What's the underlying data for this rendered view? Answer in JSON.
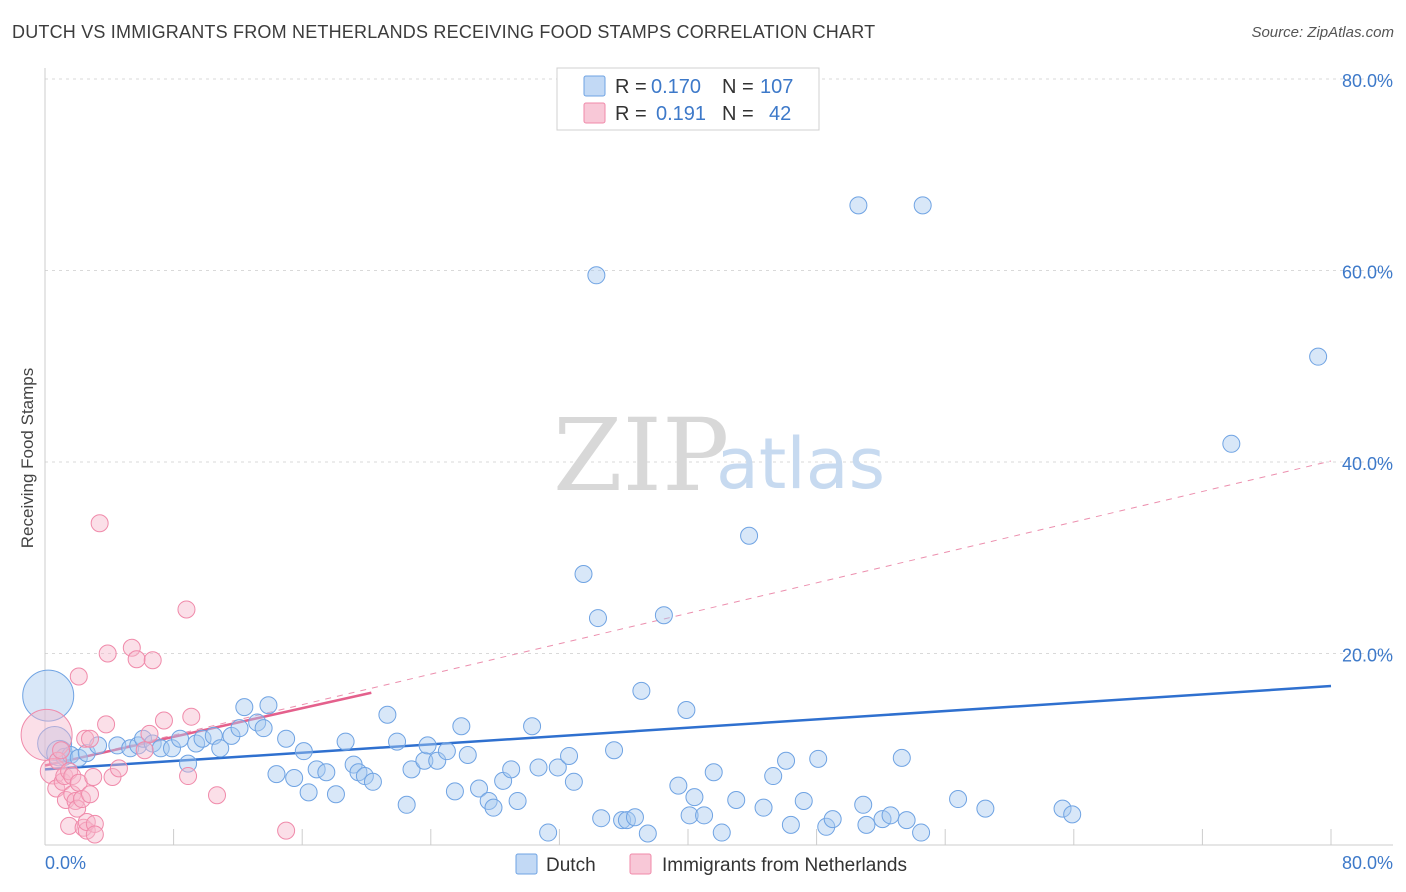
{
  "title": "DUTCH VS IMMIGRANTS FROM NETHERLANDS RECEIVING FOOD STAMPS CORRELATION CHART",
  "source": "Source: ZipAtlas.com",
  "watermark": {
    "zip": "ZIP",
    "atlas": "atlas"
  },
  "legend": {
    "rows": [
      {
        "r_label": "R =",
        "r_value": "0.170",
        "n_label": "N =",
        "n_value": "107"
      },
      {
        "r_label": "R =",
        "r_value": "0.191",
        "n_label": "N =",
        "n_value": "42"
      }
    ]
  },
  "bottom_legend": [
    "Dutch",
    "Immigrants from Netherlands"
  ],
  "colors": {
    "dutch": "#6fa3e3",
    "dutch_line": "#2f70cf",
    "neth": "#f08aaa",
    "neth_line": "#e4608c",
    "grid": "#d9d9d9",
    "tick": "#3d79c9"
  },
  "chart_data": {
    "type": "scatter",
    "title": "DUTCH VS IMMIGRANTS FROM NETHERLANDS RECEIVING FOOD STAMPS CORRELATION CHART",
    "xlabel": "",
    "ylabel": "Receiving Food Stamps",
    "xlim": [
      0,
      80
    ],
    "ylim": [
      0,
      80
    ],
    "x_tick_labels": [
      "0.0%",
      "80.0%"
    ],
    "y_tick_labels": [
      "20.0%",
      "40.0%",
      "60.0%",
      "80.0%"
    ],
    "y_ticks": [
      20,
      40,
      60,
      80
    ],
    "grid": true,
    "legend_position": "top-center",
    "series": [
      {
        "name": "Dutch",
        "color": "#6fa3e3",
        "trend": {
          "x": [
            0,
            80
          ],
          "y": [
            7.9,
            16.6
          ]
        },
        "points": [
          [
            0.2,
            15.6,
            3
          ],
          [
            0.6,
            10.6,
            2
          ],
          [
            0.9,
            9.6,
            1.5
          ],
          [
            1.2,
            9.2,
            1
          ],
          [
            1.6,
            9.4,
            1
          ],
          [
            2.1,
            9.1,
            1
          ],
          [
            2.6,
            9.6,
            1
          ],
          [
            3.3,
            10.4,
            1
          ],
          [
            4.5,
            10.4,
            1
          ],
          [
            5.3,
            10.1,
            1
          ],
          [
            5.8,
            10.4,
            1
          ],
          [
            6.1,
            11.1,
            1
          ],
          [
            6.7,
            10.6,
            1
          ],
          [
            7.2,
            10.1,
            1
          ],
          [
            7.9,
            10.1,
            1
          ],
          [
            8.4,
            11.1,
            1
          ],
          [
            8.9,
            8.5,
            1
          ],
          [
            9.4,
            10.6,
            1
          ],
          [
            9.8,
            11.1,
            1
          ],
          [
            10.5,
            11.4,
            1
          ],
          [
            10.9,
            10.1,
            1
          ],
          [
            11.6,
            11.4,
            1
          ],
          [
            12.1,
            12.2,
            1
          ],
          [
            12.4,
            14.4,
            1
          ],
          [
            13.2,
            12.8,
            1
          ],
          [
            13.6,
            12.2,
            1
          ],
          [
            13.9,
            14.6,
            1
          ],
          [
            14.4,
            7.4,
            1
          ],
          [
            15.0,
            11.1,
            1
          ],
          [
            15.5,
            7.0,
            1
          ],
          [
            16.1,
            9.8,
            1
          ],
          [
            16.4,
            5.5,
            1
          ],
          [
            16.9,
            7.9,
            1
          ],
          [
            17.5,
            7.6,
            1
          ],
          [
            18.1,
            5.3,
            1
          ],
          [
            18.7,
            10.8,
            1
          ],
          [
            19.2,
            8.4,
            1
          ],
          [
            19.5,
            7.6,
            1
          ],
          [
            19.9,
            7.2,
            1
          ],
          [
            20.4,
            6.6,
            1
          ],
          [
            21.3,
            13.6,
            1
          ],
          [
            21.9,
            10.8,
            1
          ],
          [
            22.5,
            4.2,
            1
          ],
          [
            22.8,
            7.9,
            1
          ],
          [
            23.6,
            8.8,
            1
          ],
          [
            23.8,
            10.4,
            1
          ],
          [
            24.4,
            8.8,
            1
          ],
          [
            25.0,
            9.8,
            1
          ],
          [
            25.5,
            5.6,
            1
          ],
          [
            25.9,
            12.4,
            1
          ],
          [
            26.3,
            9.4,
            1
          ],
          [
            27.0,
            5.9,
            1
          ],
          [
            27.6,
            4.6,
            1
          ],
          [
            27.9,
            3.9,
            1
          ],
          [
            28.5,
            6.7,
            1
          ],
          [
            29.0,
            7.9,
            1
          ],
          [
            29.4,
            4.6,
            1
          ],
          [
            30.3,
            12.4,
            1
          ],
          [
            30.7,
            8.1,
            1
          ],
          [
            31.3,
            1.3,
            1
          ],
          [
            31.9,
            8.1,
            1
          ],
          [
            32.6,
            9.3,
            1
          ],
          [
            32.9,
            6.6,
            1
          ],
          [
            33.5,
            28.3,
            1
          ],
          [
            34.3,
            59.5,
            1
          ],
          [
            34.4,
            23.7,
            1
          ],
          [
            34.6,
            2.8,
            1
          ],
          [
            35.4,
            9.9,
            1
          ],
          [
            35.9,
            2.6,
            1
          ],
          [
            36.2,
            2.6,
            1
          ],
          [
            36.7,
            2.9,
            1
          ],
          [
            37.1,
            16.1,
            1
          ],
          [
            37.5,
            1.2,
            1
          ],
          [
            38.5,
            24.0,
            1
          ],
          [
            39.4,
            6.2,
            1
          ],
          [
            39.9,
            14.1,
            1
          ],
          [
            40.1,
            3.1,
            1
          ],
          [
            40.4,
            5.0,
            1
          ],
          [
            41.0,
            3.1,
            1
          ],
          [
            41.6,
            7.6,
            1
          ],
          [
            42.1,
            1.3,
            1
          ],
          [
            43.0,
            4.7,
            1
          ],
          [
            43.8,
            32.3,
            1
          ],
          [
            44.7,
            3.9,
            1
          ],
          [
            45.3,
            7.2,
            1
          ],
          [
            46.1,
            8.8,
            1
          ],
          [
            46.4,
            2.1,
            1
          ],
          [
            47.2,
            4.6,
            1
          ],
          [
            48.1,
            9.0,
            1
          ],
          [
            48.6,
            1.9,
            1
          ],
          [
            49.0,
            2.7,
            1
          ],
          [
            50.6,
            66.8,
            1
          ],
          [
            50.9,
            4.2,
            1
          ],
          [
            51.1,
            2.1,
            1
          ],
          [
            52.1,
            2.7,
            1
          ],
          [
            52.6,
            3.1,
            1
          ],
          [
            53.3,
            9.1,
            1
          ],
          [
            53.6,
            2.6,
            1
          ],
          [
            54.5,
            1.3,
            1
          ],
          [
            54.6,
            66.8,
            1
          ],
          [
            56.8,
            4.8,
            1
          ],
          [
            58.5,
            3.8,
            1
          ],
          [
            63.3,
            3.8,
            1
          ],
          [
            63.9,
            3.2,
            1
          ],
          [
            73.8,
            41.9,
            1
          ],
          [
            79.2,
            51.0,
            1
          ]
        ]
      },
      {
        "name": "Immigrants from Netherlands",
        "color": "#f08aaa",
        "trend": {
          "x": [
            0,
            20.3
          ],
          "y": [
            8.3,
            15.9
          ]
        },
        "trend_extended": {
          "x": [
            0,
            80
          ],
          "y": [
            8.3,
            40.1
          ]
        },
        "points": [
          [
            0.1,
            11.5,
            3
          ],
          [
            0.5,
            7.7,
            1.5
          ],
          [
            0.7,
            5.9,
            1
          ],
          [
            0.8,
            8.8,
            1
          ],
          [
            1.0,
            9.9,
            1
          ],
          [
            1.1,
            6.6,
            1
          ],
          [
            1.2,
            7.2,
            1
          ],
          [
            1.3,
            4.7,
            1
          ],
          [
            1.5,
            7.7,
            1
          ],
          [
            1.5,
            2.0,
            1
          ],
          [
            1.7,
            7.2,
            1
          ],
          [
            1.7,
            5.3,
            1
          ],
          [
            1.9,
            4.6,
            1
          ],
          [
            2.0,
            3.8,
            1
          ],
          [
            2.1,
            6.5,
            1
          ],
          [
            2.1,
            17.6,
            1
          ],
          [
            2.3,
            4.8,
            1
          ],
          [
            2.4,
            1.8,
            1
          ],
          [
            2.5,
            11.1,
            1
          ],
          [
            2.6,
            1.5,
            1
          ],
          [
            2.6,
            2.4,
            1
          ],
          [
            2.8,
            11.1,
            1
          ],
          [
            2.8,
            5.3,
            1
          ],
          [
            3.0,
            7.1,
            1
          ],
          [
            3.1,
            2.2,
            1
          ],
          [
            3.1,
            1.1,
            1
          ],
          [
            3.4,
            33.6,
            1
          ],
          [
            3.8,
            12.6,
            1
          ],
          [
            3.9,
            20.0,
            1
          ],
          [
            4.2,
            7.1,
            1
          ],
          [
            4.6,
            8.0,
            1
          ],
          [
            5.4,
            20.6,
            1
          ],
          [
            5.7,
            19.4,
            1
          ],
          [
            6.2,
            9.9,
            1
          ],
          [
            6.5,
            11.6,
            1
          ],
          [
            6.7,
            19.3,
            1
          ],
          [
            7.4,
            13.0,
            1
          ],
          [
            8.8,
            24.6,
            1
          ],
          [
            8.9,
            7.2,
            1
          ],
          [
            9.1,
            13.4,
            1
          ],
          [
            10.7,
            5.2,
            1
          ],
          [
            15.0,
            1.5,
            1
          ]
        ]
      }
    ]
  }
}
